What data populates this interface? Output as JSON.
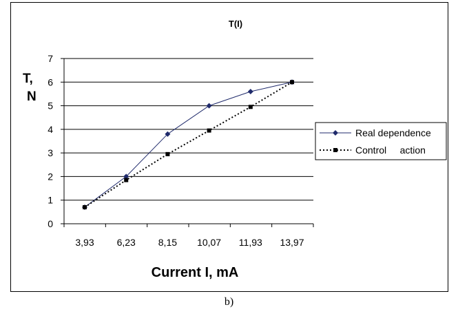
{
  "chart_data": {
    "type": "line",
    "title": "T(I)",
    "ylabel": [
      "T,",
      "N"
    ],
    "xlabel": "Current I, mA",
    "categories": [
      "3,93",
      "6,23",
      "8,15",
      "10,07",
      "11,93",
      "13,97"
    ],
    "ylim": [
      0,
      7
    ],
    "yticks": [
      0,
      1,
      2,
      3,
      4,
      5,
      6,
      7
    ],
    "grid": "horizontal",
    "legend_position": "right",
    "series": [
      {
        "name": "Real dependence",
        "values": [
          0.7,
          2.0,
          3.8,
          5.0,
          5.6,
          6.0
        ],
        "marker": "diamond",
        "line": "solid",
        "color": "#1f2a6b"
      },
      {
        "name": "Control     action",
        "values": [
          0.7,
          1.85,
          2.95,
          3.95,
          4.95,
          6.0
        ],
        "marker": "square",
        "line": "dotted",
        "color": "#000000"
      }
    ]
  },
  "caption": "b)"
}
